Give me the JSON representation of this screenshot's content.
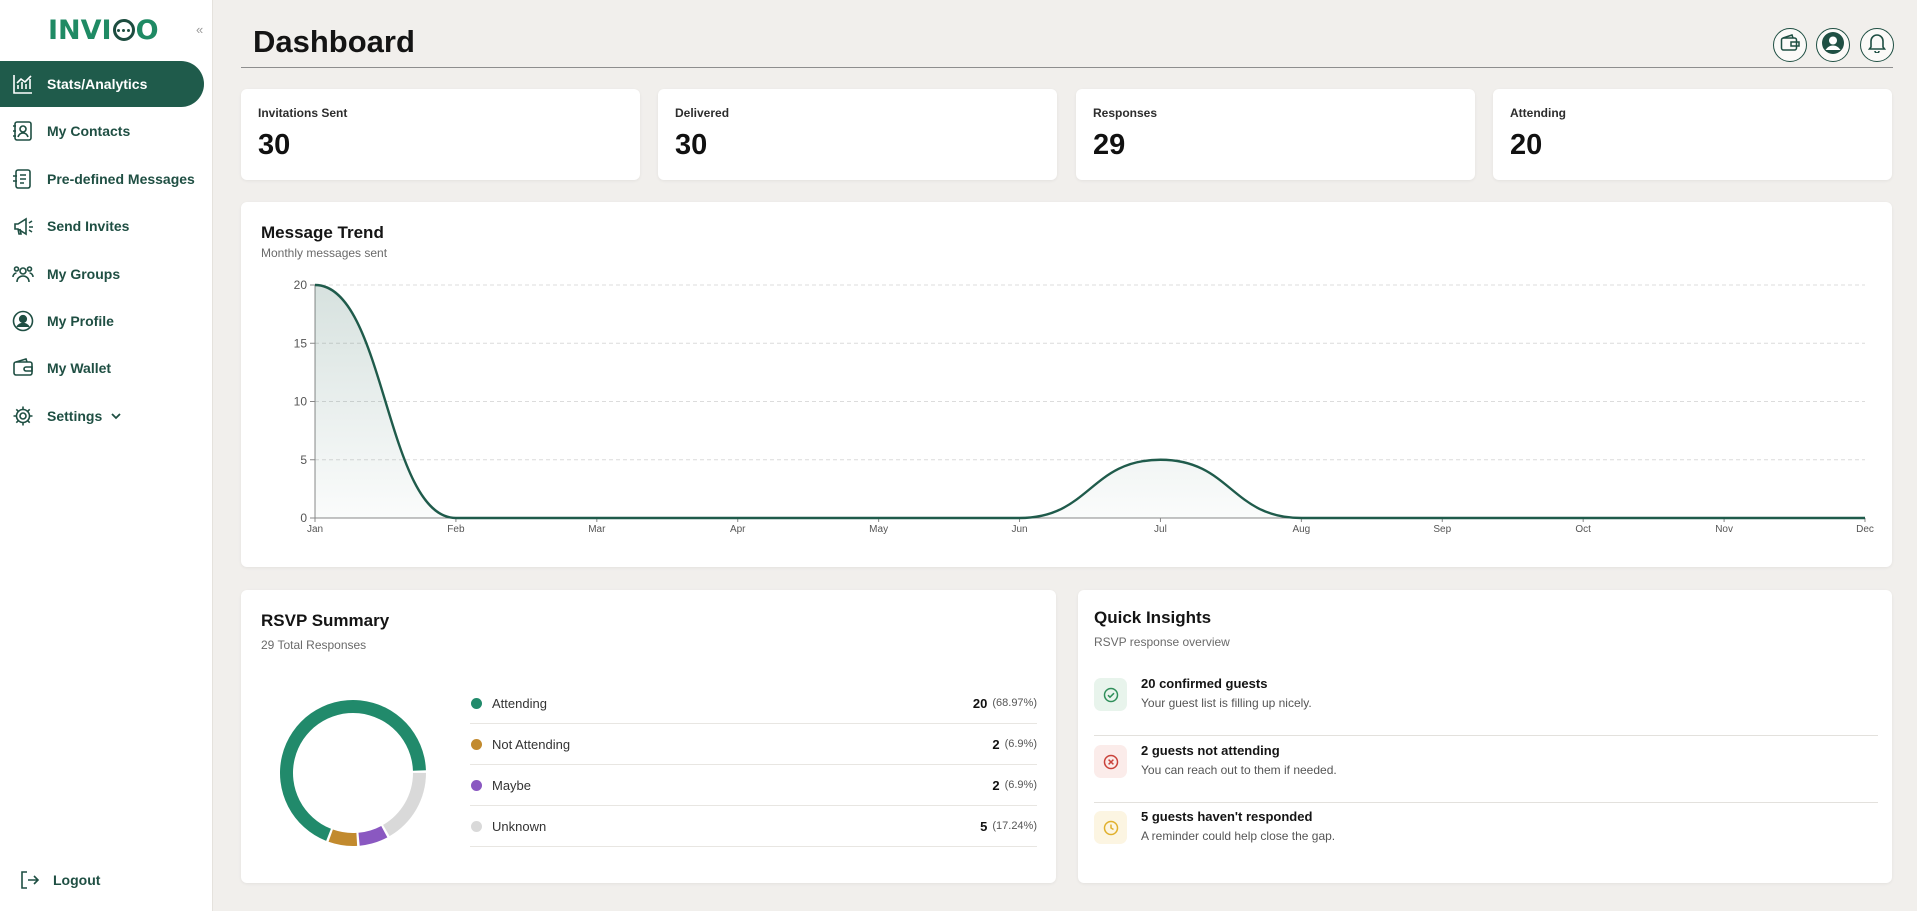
{
  "app": {
    "logo_text_left": "INVI",
    "logo_text_right": "O",
    "collapse_icon": "«"
  },
  "sidebar": {
    "items": [
      {
        "label": "Stats/Analytics",
        "icon": "chart-icon"
      },
      {
        "label": "My Contacts",
        "icon": "contacts-icon"
      },
      {
        "label": "Pre-defined Messages",
        "icon": "messages-icon"
      },
      {
        "label": "Send Invites",
        "icon": "megaphone-icon"
      },
      {
        "label": "My Groups",
        "icon": "groups-icon"
      },
      {
        "label": "My Profile",
        "icon": "profile-icon"
      },
      {
        "label": "My Wallet",
        "icon": "wallet-icon"
      },
      {
        "label": "Settings",
        "icon": "gear-icon"
      }
    ],
    "logout": "Logout"
  },
  "header": {
    "title": "Dashboard"
  },
  "stats": [
    {
      "label": "Invitations Sent",
      "value": "30"
    },
    {
      "label": "Delivered",
      "value": "30"
    },
    {
      "label": "Responses",
      "value": "29"
    },
    {
      "label": "Attending",
      "value": "20"
    }
  ],
  "trend": {
    "title": "Message Trend",
    "subtitle": "Monthly messages sent"
  },
  "chart_data": {
    "type": "area",
    "categories": [
      "Jan",
      "Feb",
      "Mar",
      "Apr",
      "May",
      "Jun",
      "Jul",
      "Aug",
      "Sep",
      "Oct",
      "Nov",
      "Dec"
    ],
    "values": [
      20,
      0,
      0,
      0,
      0,
      0,
      5,
      0,
      0,
      0,
      0,
      0
    ],
    "yticks": [
      "0",
      "5",
      "10",
      "15",
      "20"
    ],
    "ylim": [
      0,
      20
    ],
    "grid": true,
    "color": "#1f5b4b"
  },
  "rsvp": {
    "title": "RSVP Summary",
    "subtitle": "29 Total Responses",
    "items": [
      {
        "label": "Attending",
        "count": "20",
        "pct": "(68.97%)",
        "value": 20,
        "color": "#218a6b"
      },
      {
        "label": "Not Attending",
        "count": "2",
        "pct": "(6.9%)",
        "value": 2,
        "color": "#c28a2e"
      },
      {
        "label": "Maybe",
        "count": "2",
        "pct": "(6.9%)",
        "value": 2,
        "color": "#8a58c1"
      },
      {
        "label": "Unknown",
        "count": "5",
        "pct": "(17.24%)",
        "value": 5,
        "color": "#d9d9d9"
      }
    ]
  },
  "insights": {
    "title": "Quick Insights",
    "subtitle": "RSVP response overview",
    "items": [
      {
        "title": "20 confirmed guests",
        "sub": "Your guest list is filling up nicely.",
        "icon": "check-circle-icon",
        "color": "#2f8f5a"
      },
      {
        "title": "2 guests not attending",
        "sub": "You can reach out to them if needed.",
        "icon": "x-circle-icon",
        "color": "#c9423a"
      },
      {
        "title": "5 guests haven't responded",
        "sub": "A reminder could help close the gap.",
        "icon": "clock-icon",
        "color": "#e0b02c"
      }
    ]
  }
}
